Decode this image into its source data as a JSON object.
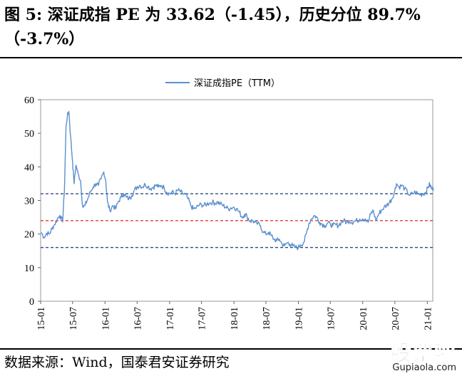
{
  "caption": {
    "title": "图 5: 深证成指 PE 为 33.62（-1.45），历史分位 89.7%（-3.7%）",
    "source": "数据来源：Wind，国泰君安证券研究"
  },
  "watermark": {
    "brand": "股票啦",
    "site": "Gupiaola.com"
  },
  "colors": {
    "series": "#5B8FD0",
    "mean_line": "#E03C31",
    "band_line": "#2F4B7C",
    "plot_border": "#999999"
  },
  "chart_data": {
    "type": "line",
    "title": "",
    "xlabel": "",
    "ylabel": "",
    "ylim": [
      0,
      60
    ],
    "yticks": [
      0,
      10,
      20,
      30,
      40,
      50,
      60
    ],
    "x_tick_labels": [
      "15-01",
      "15-07",
      "16-01",
      "16-07",
      "17-01",
      "17-07",
      "18-01",
      "18-07",
      "19-01",
      "19-07",
      "20-01",
      "20-07",
      "21-01"
    ],
    "x_range": [
      "2015-01",
      "2021-02"
    ],
    "grid": false,
    "legend_position": "top-center",
    "series": [
      {
        "name": "深证成指PE（TTM）",
        "points": [
          [
            "2015-01-05",
            20.5
          ],
          [
            "2015-01-20",
            19.0
          ],
          [
            "2015-02-05",
            20.3
          ],
          [
            "2015-02-20",
            20.0
          ],
          [
            "2015-03-05",
            21.5
          ],
          [
            "2015-03-20",
            22.8
          ],
          [
            "2015-04-05",
            24.5
          ],
          [
            "2015-04-20",
            25.6
          ],
          [
            "2015-05-05",
            23.6
          ],
          [
            "2015-05-15",
            32.0
          ],
          [
            "2015-05-25",
            52.0
          ],
          [
            "2015-06-01",
            55.0
          ],
          [
            "2015-06-10",
            56.5
          ],
          [
            "2015-06-20",
            49.0
          ],
          [
            "2015-07-01",
            41.5
          ],
          [
            "2015-07-10",
            35.0
          ],
          [
            "2015-07-20",
            40.5
          ],
          [
            "2015-08-01",
            38.0
          ],
          [
            "2015-08-15",
            36.0
          ],
          [
            "2015-08-28",
            28.0
          ],
          [
            "2015-09-10",
            28.5
          ],
          [
            "2015-09-25",
            30.5
          ],
          [
            "2015-10-10",
            32.5
          ],
          [
            "2015-10-25",
            34.0
          ],
          [
            "2015-11-10",
            35.0
          ],
          [
            "2015-11-25",
            34.5
          ],
          [
            "2015-12-10",
            36.5
          ],
          [
            "2015-12-25",
            38.5
          ],
          [
            "2016-01-05",
            36.0
          ],
          [
            "2016-01-15",
            29.5
          ],
          [
            "2016-01-28",
            27.0
          ],
          [
            "2016-02-15",
            28.5
          ],
          [
            "2016-03-01",
            27.5
          ],
          [
            "2016-03-15",
            29.5
          ],
          [
            "2016-04-01",
            31.0
          ],
          [
            "2016-04-15",
            32.0
          ],
          [
            "2016-05-01",
            31.0
          ],
          [
            "2016-05-15",
            30.5
          ],
          [
            "2016-06-01",
            31.5
          ],
          [
            "2016-06-15",
            33.0
          ],
          [
            "2016-07-01",
            34.0
          ],
          [
            "2016-07-15",
            34.5
          ],
          [
            "2016-08-01",
            34.0
          ],
          [
            "2016-08-15",
            34.8
          ],
          [
            "2016-09-01",
            34.2
          ],
          [
            "2016-09-15",
            33.5
          ],
          [
            "2016-10-01",
            34.0
          ],
          [
            "2016-10-15",
            34.5
          ],
          [
            "2016-11-01",
            34.0
          ],
          [
            "2016-11-15",
            34.5
          ],
          [
            "2016-12-01",
            33.8
          ],
          [
            "2016-12-15",
            32.5
          ],
          [
            "2017-01-01",
            32.0
          ],
          [
            "2017-01-15",
            32.5
          ],
          [
            "2017-02-01",
            32.0
          ],
          [
            "2017-02-15",
            33.0
          ],
          [
            "2017-03-01",
            32.8
          ],
          [
            "2017-03-15",
            32.0
          ],
          [
            "2017-04-01",
            31.8
          ],
          [
            "2017-04-15",
            30.5
          ],
          [
            "2017-05-01",
            28.5
          ],
          [
            "2017-05-15",
            27.5
          ],
          [
            "2017-06-01",
            27.8
          ],
          [
            "2017-06-15",
            28.5
          ],
          [
            "2017-07-01",
            28.8
          ],
          [
            "2017-07-15",
            28.5
          ],
          [
            "2017-08-01",
            29.0
          ],
          [
            "2017-08-15",
            29.2
          ],
          [
            "2017-09-01",
            29.5
          ],
          [
            "2017-09-15",
            29.2
          ],
          [
            "2017-10-01",
            29.5
          ],
          [
            "2017-10-15",
            29.0
          ],
          [
            "2017-11-01",
            28.5
          ],
          [
            "2017-11-15",
            28.0
          ],
          [
            "2017-12-01",
            27.5
          ],
          [
            "2017-12-15",
            27.8
          ],
          [
            "2018-01-01",
            28.0
          ],
          [
            "2018-01-15",
            27.5
          ],
          [
            "2018-02-01",
            26.5
          ],
          [
            "2018-02-15",
            25.0
          ],
          [
            "2018-03-01",
            25.8
          ],
          [
            "2018-03-15",
            25.5
          ],
          [
            "2018-04-01",
            23.8
          ],
          [
            "2018-04-15",
            24.0
          ],
          [
            "2018-05-01",
            23.5
          ],
          [
            "2018-05-15",
            23.0
          ],
          [
            "2018-06-01",
            22.5
          ],
          [
            "2018-06-15",
            20.5
          ],
          [
            "2018-07-01",
            20.0
          ],
          [
            "2018-07-15",
            20.5
          ],
          [
            "2018-08-01",
            19.5
          ],
          [
            "2018-08-15",
            18.5
          ],
          [
            "2018-09-01",
            18.0
          ],
          [
            "2018-09-15",
            18.5
          ],
          [
            "2018-10-01",
            17.0
          ],
          [
            "2018-10-15",
            16.5
          ],
          [
            "2018-11-01",
            17.5
          ],
          [
            "2018-11-15",
            17.0
          ],
          [
            "2018-12-01",
            16.5
          ],
          [
            "2018-12-15",
            16.0
          ],
          [
            "2019-01-01",
            16.0
          ],
          [
            "2019-01-15",
            16.8
          ],
          [
            "2019-02-01",
            17.5
          ],
          [
            "2019-02-15",
            20.0
          ],
          [
            "2019-03-01",
            23.0
          ],
          [
            "2019-03-15",
            24.5
          ],
          [
            "2019-04-01",
            25.5
          ],
          [
            "2019-04-15",
            25.0
          ],
          [
            "2019-05-01",
            23.5
          ],
          [
            "2019-05-15",
            23.0
          ],
          [
            "2019-06-01",
            22.5
          ],
          [
            "2019-06-15",
            23.2
          ],
          [
            "2019-07-01",
            23.0
          ],
          [
            "2019-07-15",
            22.5
          ],
          [
            "2019-08-01",
            22.8
          ],
          [
            "2019-08-15",
            22.5
          ],
          [
            "2019-09-01",
            23.5
          ],
          [
            "2019-09-15",
            24.0
          ],
          [
            "2019-10-01",
            23.5
          ],
          [
            "2019-10-15",
            24.0
          ],
          [
            "2019-11-01",
            23.5
          ],
          [
            "2019-11-15",
            23.8
          ],
          [
            "2019-12-01",
            24.0
          ],
          [
            "2019-12-15",
            24.5
          ],
          [
            "2020-01-01",
            24.5
          ],
          [
            "2020-01-15",
            24.5
          ],
          [
            "2020-02-01",
            23.5
          ],
          [
            "2020-02-15",
            26.0
          ],
          [
            "2020-03-01",
            27.0
          ],
          [
            "2020-03-15",
            24.0
          ],
          [
            "2020-04-01",
            26.0
          ],
          [
            "2020-04-15",
            27.0
          ],
          [
            "2020-05-01",
            28.0
          ],
          [
            "2020-05-15",
            28.5
          ],
          [
            "2020-06-01",
            29.5
          ],
          [
            "2020-06-15",
            30.5
          ],
          [
            "2020-07-01",
            33.0
          ],
          [
            "2020-07-10",
            35.0
          ],
          [
            "2020-07-25",
            34.0
          ],
          [
            "2020-08-10",
            34.5
          ],
          [
            "2020-08-25",
            33.5
          ],
          [
            "2020-09-10",
            32.5
          ],
          [
            "2020-09-25",
            31.5
          ],
          [
            "2020-10-10",
            32.0
          ],
          [
            "2020-10-25",
            32.5
          ],
          [
            "2020-11-10",
            32.0
          ],
          [
            "2020-11-25",
            31.8
          ],
          [
            "2020-12-10",
            32.0
          ],
          [
            "2020-12-25",
            32.5
          ],
          [
            "2021-01-05",
            34.0
          ],
          [
            "2021-01-15",
            34.8
          ],
          [
            "2021-01-25",
            33.5
          ],
          [
            "2021-02-05",
            33.6
          ]
        ]
      }
    ],
    "reference_lines": [
      {
        "y": 32.0,
        "style": "dashed",
        "color_key": "band_line"
      },
      {
        "y": 24.0,
        "style": "dashed",
        "color_key": "mean_line"
      },
      {
        "y": 16.0,
        "style": "dashed",
        "color_key": "band_line"
      }
    ]
  }
}
